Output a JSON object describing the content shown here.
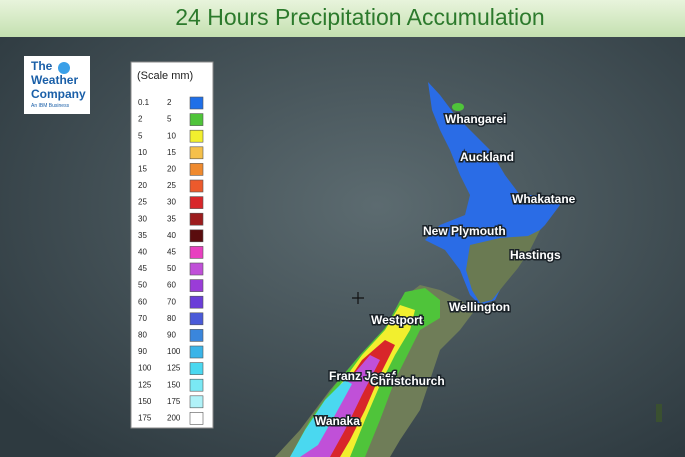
{
  "title": "24 Hours Precipitation Accumulation",
  "logo": {
    "lines": [
      "The",
      "Weather",
      "Company"
    ],
    "tagline": "An IBM Business"
  },
  "legend": {
    "title": "(Scale mm)",
    "rows": [
      {
        "from": 0.1,
        "to": 2,
        "color": "#1f6fe8"
      },
      {
        "from": 2,
        "to": 5,
        "color": "#4fc43a"
      },
      {
        "from": 5,
        "to": 10,
        "color": "#f2ef2e"
      },
      {
        "from": 10,
        "to": 15,
        "color": "#f5c04a"
      },
      {
        "from": 15,
        "to": 20,
        "color": "#ef8a2e"
      },
      {
        "from": 20,
        "to": 25,
        "color": "#ec5a2c"
      },
      {
        "from": 25,
        "to": 30,
        "color": "#d8262a"
      },
      {
        "from": 30,
        "to": 35,
        "color": "#9c1c1e"
      },
      {
        "from": 35,
        "to": 40,
        "color": "#5a0c0e"
      },
      {
        "from": 40,
        "to": 45,
        "color": "#e840c0"
      },
      {
        "from": 45,
        "to": 50,
        "color": "#c050d8"
      },
      {
        "from": 50,
        "to": 60,
        "color": "#9a3cd8"
      },
      {
        "from": 60,
        "to": 70,
        "color": "#6a3ed8"
      },
      {
        "from": 70,
        "to": 80,
        "color": "#4a5ad8"
      },
      {
        "from": 80,
        "to": 90,
        "color": "#3a86dc"
      },
      {
        "from": 90,
        "to": 100,
        "color": "#3ab4e8"
      },
      {
        "from": 100,
        "to": 125,
        "color": "#4ad8f0"
      },
      {
        "from": 125,
        "to": 150,
        "color": "#7ae8f4"
      },
      {
        "from": 150,
        "to": 175,
        "color": "#b0f2f8"
      },
      {
        "from": 175,
        "to": 200,
        "color": "#ffffff"
      }
    ]
  },
  "cities": [
    "Whangarei",
    "Auckland",
    "Whakatane",
    "New Plymouth",
    "Hastings",
    "Wellington",
    "Westport",
    "Franz Josef",
    "Christchurch",
    "Wanaka"
  ]
}
